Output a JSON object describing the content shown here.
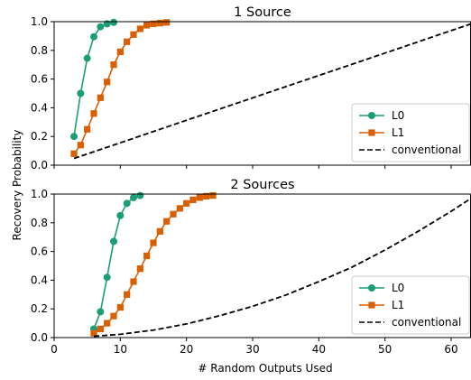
{
  "figure": {
    "ylabel": "Recovery Probability",
    "xlabel": "# Random Outputs Used"
  },
  "colors": {
    "L0": "#1b9e77",
    "L1": "#d95f02",
    "conventional": "#000000"
  },
  "chart_data": [
    {
      "type": "line",
      "title": "1 Source",
      "xlim": [
        0,
        63
      ],
      "ylim": [
        0,
        1.0
      ],
      "xticks": [
        0,
        10,
        20,
        30,
        40,
        50,
        60
      ],
      "yticks": [
        0.0,
        0.2,
        0.4,
        0.6,
        0.8,
        1.0
      ],
      "show_xtick_labels": false,
      "grid": false,
      "legend_placement": "lower-right",
      "series": [
        {
          "name": "L0",
          "marker": "circle",
          "linestyle": "solid",
          "x": [
            3,
            4,
            5,
            6,
            7,
            8,
            9
          ],
          "y": [
            0.2,
            0.5,
            0.745,
            0.895,
            0.965,
            0.985,
            0.995
          ]
        },
        {
          "name": "L1",
          "marker": "square",
          "linestyle": "solid",
          "x": [
            3,
            4,
            5,
            6,
            7,
            8,
            9,
            10,
            11,
            12,
            13,
            14,
            15,
            16,
            17
          ],
          "y": [
            0.08,
            0.14,
            0.25,
            0.36,
            0.47,
            0.58,
            0.7,
            0.79,
            0.86,
            0.91,
            0.95,
            0.975,
            0.985,
            0.99,
            0.995
          ]
        },
        {
          "name": "conventional",
          "marker": "none",
          "linestyle": "dashed",
          "x": [
            3,
            10,
            20,
            30,
            40,
            50,
            60,
            63
          ],
          "y": [
            0.047,
            0.156,
            0.313,
            0.469,
            0.625,
            0.781,
            0.938,
            0.984
          ]
        }
      ]
    },
    {
      "type": "line",
      "title": "2 Sources",
      "xlim": [
        0,
        63
      ],
      "ylim": [
        0,
        1.0
      ],
      "xticks": [
        0,
        10,
        20,
        30,
        40,
        50,
        60
      ],
      "yticks": [
        0.0,
        0.2,
        0.4,
        0.6,
        0.8,
        1.0
      ],
      "show_xtick_labels": true,
      "grid": false,
      "legend_placement": "lower-right",
      "series": [
        {
          "name": "L0",
          "marker": "circle",
          "linestyle": "solid",
          "x": [
            6,
            7,
            8,
            9,
            10,
            11,
            12,
            13
          ],
          "y": [
            0.06,
            0.18,
            0.42,
            0.67,
            0.85,
            0.935,
            0.975,
            0.99
          ]
        },
        {
          "name": "L1",
          "marker": "square",
          "linestyle": "solid",
          "x": [
            6,
            7,
            8,
            9,
            10,
            11,
            12,
            13,
            14,
            15,
            16,
            17,
            18,
            19,
            20,
            21,
            22,
            23,
            24
          ],
          "y": [
            0.03,
            0.06,
            0.1,
            0.15,
            0.21,
            0.3,
            0.39,
            0.48,
            0.57,
            0.66,
            0.74,
            0.81,
            0.86,
            0.9,
            0.935,
            0.96,
            0.975,
            0.985,
            0.99
          ]
        },
        {
          "name": "conventional",
          "marker": "none",
          "linestyle": "dashed",
          "x": [
            6,
            10,
            15,
            20,
            25,
            30,
            35,
            40,
            45,
            50,
            55,
            60,
            63
          ],
          "y": [
            0.009,
            0.023,
            0.052,
            0.095,
            0.152,
            0.218,
            0.296,
            0.39,
            0.49,
            0.61,
            0.74,
            0.88,
            0.97
          ]
        }
      ]
    }
  ]
}
